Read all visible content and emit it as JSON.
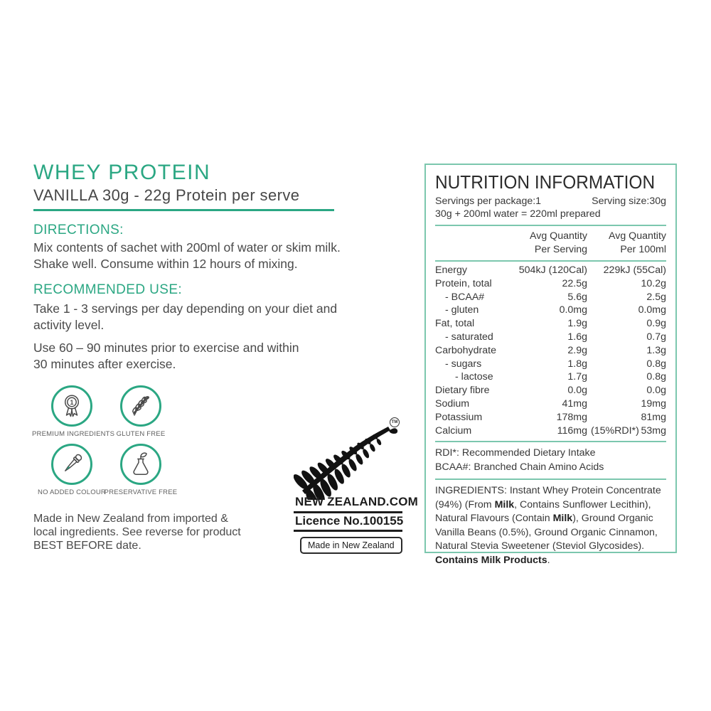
{
  "colors": {
    "accent_green": "#2BA783",
    "panel_border": "#7CC7AE",
    "fern_black": "#121212"
  },
  "product": {
    "title": "WHEY PROTEIN",
    "subtitle": "VANILLA 30g - 22g Protein per serve"
  },
  "directions": {
    "heading": "DIRECTIONS:",
    "lines": [
      "Mix contents of sachet with 200ml of water or skim milk.",
      "Shake well. Consume within 12 hours of mixing."
    ]
  },
  "recommended": {
    "heading": "RECOMMENDED USE:",
    "para1_lines": [
      "Take 1 - 3 servings per day depending on your diet and",
      "activity level."
    ],
    "para2_lines": [
      "Use 60 – 90 minutes prior to exercise and within",
      "30 minutes after exercise."
    ]
  },
  "badges": [
    {
      "icon": "medal-icon",
      "label": "PREMIUM INGREDIENTS"
    },
    {
      "icon": "wheat-icon",
      "label": "GLUTEN FREE"
    },
    {
      "icon": "dropper-icon",
      "label": "NO ADDED COLOUR"
    },
    {
      "icon": "flask-icon",
      "label": "PRESERVATIVE FREE"
    }
  ],
  "origin_note_lines": [
    "Made in New Zealand from imported &",
    "local ingredients. See reverse for product",
    "BEST BEFORE date."
  ],
  "fernmark": {
    "tm": "TM",
    "site": "NEW ZEALAND.COM",
    "licence": "Licence No.100155",
    "made_in": "Made in New Zealand"
  },
  "nutrition": {
    "title": "NUTRITION INFORMATION",
    "servings_per_package": "Servings per package:1",
    "serving_size": "Serving size:30g",
    "prepared": "30g + 200ml water = 220ml prepared",
    "col_serving_header": [
      "Avg Quantity",
      "Per Serving"
    ],
    "col_100ml_header": [
      "Avg Quantity",
      "Per 100ml"
    ],
    "rows": [
      {
        "name": "Energy",
        "indent": 0,
        "serving": "504kJ (120Cal)",
        "per100": "229kJ (55Cal)"
      },
      {
        "name": "Protein, total",
        "indent": 0,
        "serving": "22.5g",
        "per100": "10.2g"
      },
      {
        "name": "- BCAA#",
        "indent": 1,
        "serving": "5.6g",
        "per100": "2.5g"
      },
      {
        "name": "- gluten",
        "indent": 1,
        "serving": "0.0mg",
        "per100": "0.0mg"
      },
      {
        "name": "Fat, total",
        "indent": 0,
        "serving": "1.9g",
        "per100": "0.9g"
      },
      {
        "name": "- saturated",
        "indent": 1,
        "serving": "1.6g",
        "per100": "0.7g"
      },
      {
        "name": "Carbohydrate",
        "indent": 0,
        "serving": "2.9g",
        "per100": "1.3g"
      },
      {
        "name": "- sugars",
        "indent": 1,
        "serving": "1.8g",
        "per100": "0.8g"
      },
      {
        "name": "- lactose",
        "indent": 2,
        "serving": "1.7g",
        "per100": "0.8g"
      },
      {
        "name": "Dietary fibre",
        "indent": 0,
        "serving": "0.0g",
        "per100": "0.0g"
      },
      {
        "name": "Sodium",
        "indent": 0,
        "serving": "41mg",
        "per100": "19mg"
      },
      {
        "name": "Potassium",
        "indent": 0,
        "serving": "178mg",
        "per100": "81mg"
      },
      {
        "name": "Calcium",
        "indent": 0,
        "serving": "116mg",
        "serving_suffix": "(15%RDI*)",
        "per100": "53mg"
      }
    ],
    "footnotes": [
      "RDI*: Recommended Dietary Intake",
      "BCAA#: Branched Chain Amino Acids"
    ],
    "ingredients_segments": [
      {
        "text": "INGREDIENTS: Instant Whey Protein Concentrate (94%) (From ",
        "bold": false
      },
      {
        "text": "Milk",
        "bold": true
      },
      {
        "text": ", Contains Sunflower Lecithin), Natural Flavours (Contain ",
        "bold": false
      },
      {
        "text": "Milk",
        "bold": true
      },
      {
        "text": "), Ground Organic Vanilla Beans (0.5%), Ground Organic Cinnamon, Natural Stevia Sweetener (Steviol Glycosides). ",
        "bold": false
      },
      {
        "text": "Contains Milk Products",
        "bold": true
      },
      {
        "text": ".",
        "bold": false
      }
    ]
  }
}
